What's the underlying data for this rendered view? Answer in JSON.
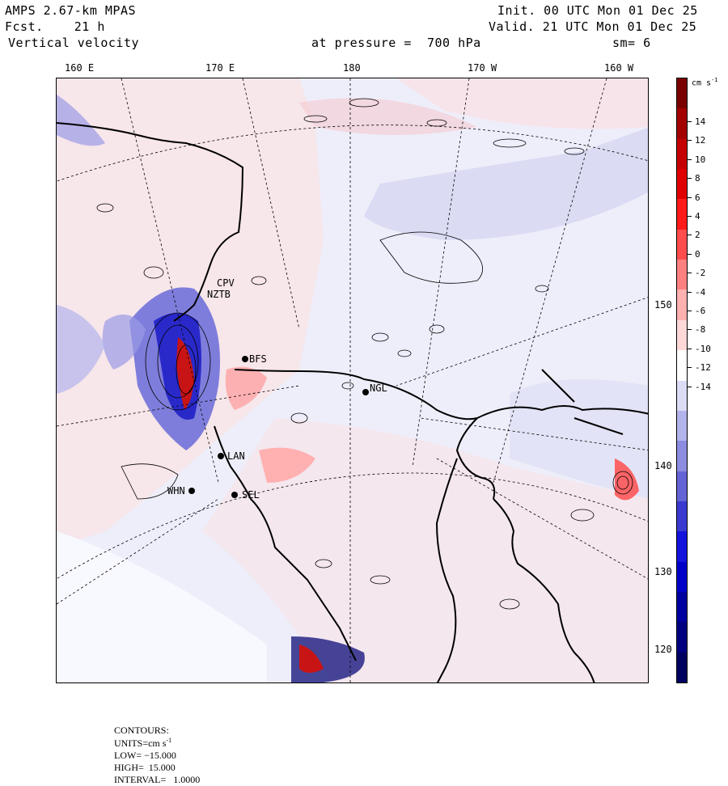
{
  "header": {
    "model": "AMPS 2.67-km MPAS",
    "forecast": "Fcst.    21 h",
    "field": "Vertical velocity",
    "init": "Init. 00 UTC Mon 01 Dec 25",
    "valid": "Valid. 21 UTC Mon 01 Dec 25",
    "level": "at pressure =  700 hPa",
    "smoothing": "sm= 6"
  },
  "longitude_labels": [
    "160 E",
    "170 E",
    "180",
    "170 W",
    "160 W"
  ],
  "latitude_labels": [
    "150 W",
    "140 W",
    "130 W",
    "120 W"
  ],
  "stations": [
    {
      "code": "CPV"
    },
    {
      "code": "NZTB"
    },
    {
      "code": "BFS"
    },
    {
      "code": "NGL"
    },
    {
      "code": "LAN"
    },
    {
      "code": "WHN"
    },
    {
      "code": "SEL"
    }
  ],
  "colorbar": {
    "unit": "cm s",
    "unit_sup": "-1",
    "ticks": [
      "14",
      "12",
      "10",
      "8",
      "6",
      "4",
      "2",
      "0",
      "-2",
      "-4",
      "-6",
      "-8",
      "-10",
      "-12",
      "-14"
    ],
    "colors": [
      "#7a0000",
      "#a30000",
      "#c40000",
      "#e00000",
      "#ff1a1a",
      "#ff4d4d",
      "#ff8080",
      "#ffb0b0",
      "#ffd8d8",
      "#ffffff",
      "#dcdcf5",
      "#b4b4ec",
      "#8c8ce0",
      "#6464d6",
      "#3a3ad0",
      "#1414dc",
      "#0000c8",
      "#0000a0",
      "#000080",
      "#000060"
    ]
  },
  "footer": {
    "contours_label": "CONTOURS:",
    "units_text": "UNITS=cm s",
    "units_sup": "-1",
    "low": "LOW= −15.000",
    "high": "HIGH=  15.000",
    "interval": "INTERVAL=   1.0000"
  }
}
